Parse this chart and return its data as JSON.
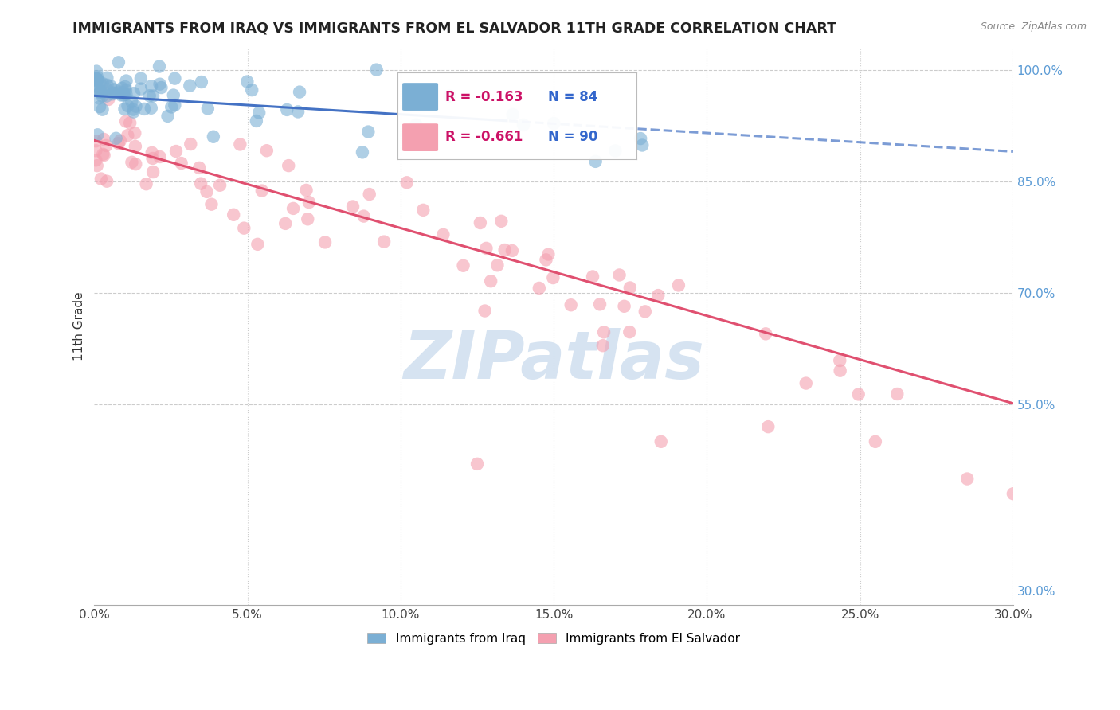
{
  "title": "IMMIGRANTS FROM IRAQ VS IMMIGRANTS FROM EL SALVADOR 11TH GRADE CORRELATION CHART",
  "source": "Source: ZipAtlas.com",
  "ylabel": "11th Grade",
  "xlabel_ticks": [
    "0.0%",
    "5.0%",
    "10.0%",
    "15.0%",
    "20.0%",
    "25.0%",
    "30.0%"
  ],
  "xlabel_vals": [
    0.0,
    5.0,
    10.0,
    15.0,
    20.0,
    25.0,
    30.0
  ],
  "xlim": [
    0.0,
    30.0
  ],
  "ylim": [
    28.0,
    103.0
  ],
  "iraq_R": -0.163,
  "iraq_N": 84,
  "salvador_R": -0.661,
  "salvador_N": 90,
  "iraq_color": "#7BAFD4",
  "salvador_color": "#F4A0B0",
  "iraq_line_color": "#4472C4",
  "salvador_line_color": "#E05070",
  "watermark": "ZIPatlas",
  "watermark_color": "#C5D8EC",
  "grid_color": "#CCCCCC",
  "right_axis_color": "#5B9BD5",
  "right_yticks": [
    100.0,
    85.0,
    70.0,
    55.0
  ],
  "right_yticklabels": [
    "100.0%",
    "85.0%",
    "70.0%",
    "55.0%"
  ],
  "bottom_right_label": "30.0%",
  "bottom_right_val": 30.0,
  "iraq_line_x0": 0.0,
  "iraq_line_y0": 96.5,
  "iraq_line_x1": 28.0,
  "iraq_line_y1": 89.5,
  "iraq_solid_end": 13.5,
  "salvador_line_x0": 0.0,
  "salvador_line_y0": 90.5,
  "salvador_line_x1": 28.0,
  "salvador_line_y1": 57.5
}
